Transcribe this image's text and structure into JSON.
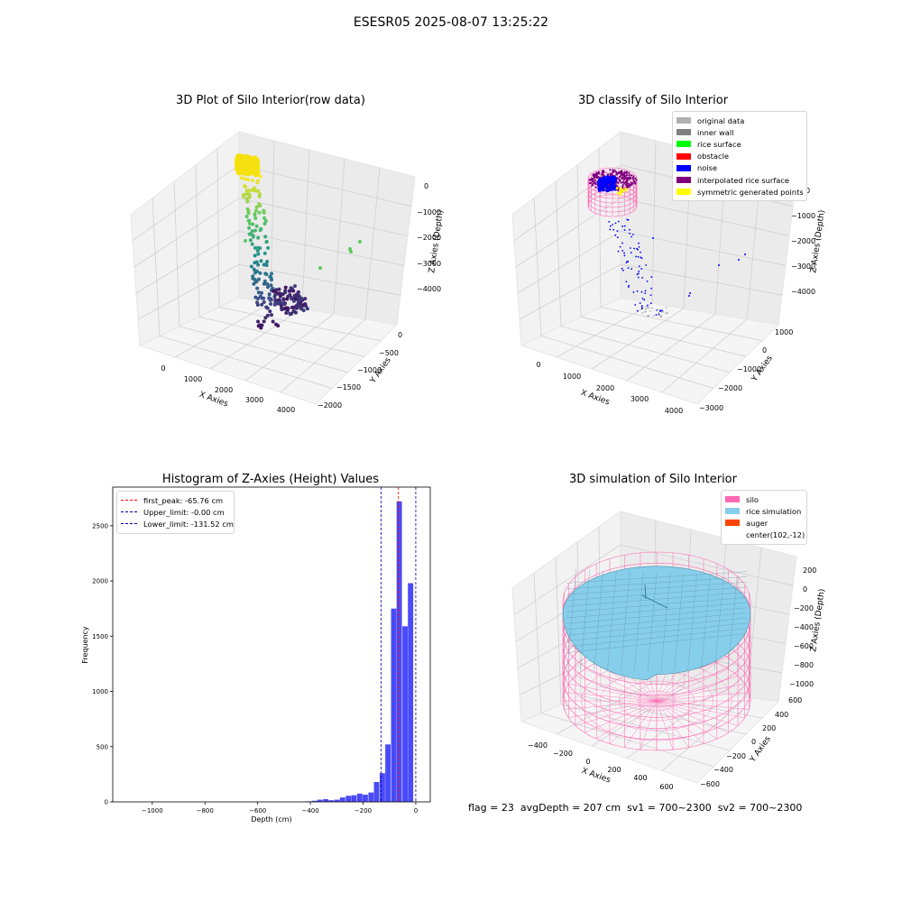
{
  "figure_title": "ESESR05 2025-08-07 13:25:22",
  "footer": {
    "flag": "flag = 23",
    "avg_depth": "avgDepth = 207 cm",
    "sv1": "sv1 = 700~2300",
    "sv2": "sv2 = 700~2300"
  },
  "colors": {
    "histogram_bar": "#4a4af8",
    "first_peak_line": "#ff0000",
    "limit_lines": "#0000aa",
    "silo_wire": "#ff69b4",
    "rice_surface": "#87ceeb",
    "auger": "#ff4500"
  },
  "chart_data": [
    {
      "type": "scatter",
      "title": "3D Plot of Silo Interior(row data)",
      "projection": "3d",
      "xlabel": "X Axies",
      "ylabel": "Y Axies",
      "zlabel": "Z Axies (Depth)",
      "x_ticks": [
        "0",
        "1000",
        "2000",
        "3000",
        "4000"
      ],
      "y_ticks": [
        "0",
        "−500",
        "−1000",
        "−1500",
        "−2000"
      ],
      "z_ticks": [
        "0",
        "−1000",
        "−2000",
        "−3000",
        "−4000"
      ],
      "colormap": "viridis"
    },
    {
      "type": "scatter",
      "title": "3D classify of Silo Interior",
      "projection": "3d",
      "xlabel": "X Axies",
      "ylabel": "Y Axies",
      "zlabel": "Z Axies (Depth)",
      "x_ticks": [
        "0",
        "1000",
        "2000",
        "3000",
        "4000"
      ],
      "y_ticks": [
        "1000",
        "0",
        "−1000",
        "−2000",
        "−3000"
      ],
      "z_ticks": [
        "0",
        "−1000",
        "−2000",
        "−3000",
        "−4000"
      ],
      "legend_position": "top-right",
      "legend": [
        {
          "label": "original data",
          "color": "#b0b0b0"
        },
        {
          "label": "inner wall",
          "color": "#808080"
        },
        {
          "label": "rice surface",
          "color": "#00ff00"
        },
        {
          "label": "obstacle",
          "color": "#ff0000"
        },
        {
          "label": "noise",
          "color": "#0000ff"
        },
        {
          "label": "interpolated rice surface",
          "color": "#800080"
        },
        {
          "label": "symmetric generated points",
          "color": "#ffff00"
        }
      ]
    },
    {
      "type": "bar",
      "title": "Histogram of Z-Axies (Height) Values",
      "xlabel": "Depth (cm)",
      "ylabel": "Frequency",
      "xlim": [
        -1150,
        55
      ],
      "ylim": [
        0,
        2850
      ],
      "x_ticks": [
        -1000,
        -800,
        -600,
        -400,
        -200,
        0
      ],
      "x_tick_labels": [
        "−1000",
        "−800",
        "−600",
        "−400",
        "−200",
        "0"
      ],
      "y_ticks": [
        0,
        500,
        1000,
        1500,
        2000,
        2500
      ],
      "y_tick_labels": [
        "0",
        "500",
        "1000",
        "1500",
        "2000",
        "2500"
      ],
      "bin_width": 21.5,
      "bins": [
        {
          "x": -406,
          "count": 5
        },
        {
          "x": -384,
          "count": 10
        },
        {
          "x": -363,
          "count": 20
        },
        {
          "x": -341,
          "count": 25
        },
        {
          "x": -320,
          "count": 15
        },
        {
          "x": -298,
          "count": 20
        },
        {
          "x": -277,
          "count": 40
        },
        {
          "x": -255,
          "count": 55
        },
        {
          "x": -234,
          "count": 60
        },
        {
          "x": -212,
          "count": 75
        },
        {
          "x": -191,
          "count": 65
        },
        {
          "x": -169,
          "count": 85
        },
        {
          "x": -148,
          "count": 180
        },
        {
          "x": -126,
          "count": 260
        },
        {
          "x": -105,
          "count": 520
        },
        {
          "x": -83,
          "count": 1750
        },
        {
          "x": -62,
          "count": 2720
        },
        {
          "x": -40,
          "count": 1590
        },
        {
          "x": -19,
          "count": 1980
        }
      ],
      "legend_position": "top-left",
      "vlines": [
        {
          "label": "first_peak: -65.76 cm",
          "x": -65.76,
          "color": "#ff0000"
        },
        {
          "label": "Upper_limit: -0.00 cm",
          "x": -0.0,
          "color": "#0000aa"
        },
        {
          "label": "Lower_limit: -131.52 cm",
          "x": -131.52,
          "color": "#0000aa"
        }
      ]
    },
    {
      "type": "surface",
      "title": "3D simulation of Silo Interior",
      "projection": "3d",
      "xlabel": "X Axies",
      "ylabel": "Y Axies",
      "zlabel": "Z Axies (Depth)",
      "x_ticks": [
        "−400",
        "−200",
        "0",
        "200",
        "400",
        "600"
      ],
      "y_ticks": [
        "600",
        "400",
        "200",
        "0",
        "−200",
        "−400",
        "−600"
      ],
      "z_ticks": [
        "200",
        "0",
        "−200",
        "−400",
        "−600",
        "−800",
        "−1000"
      ],
      "legend_position": "top-right",
      "legend": [
        {
          "label": "silo",
          "color": "#ff69b4"
        },
        {
          "label": "rice simulation",
          "color": "#87ceeb"
        },
        {
          "label": "auger",
          "color": "#ff4500"
        },
        {
          "label": "center(102,-12)",
          "color": ""
        }
      ]
    }
  ]
}
